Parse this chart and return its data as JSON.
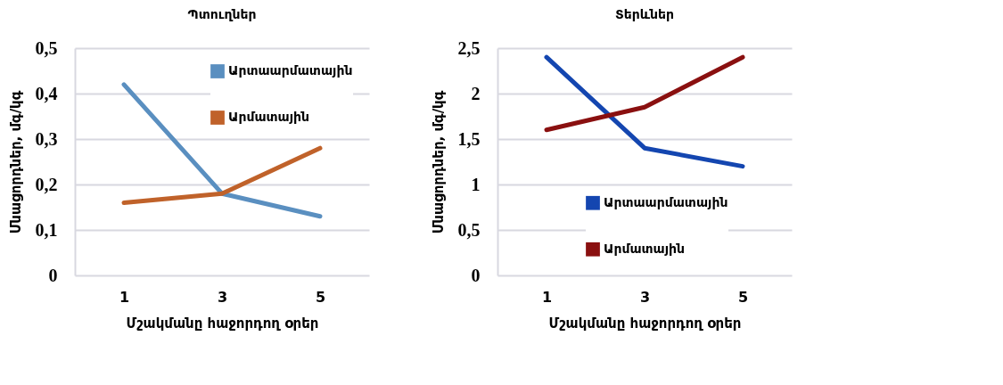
{
  "chart_data": [
    {
      "type": "line",
      "title": "Պտուղներ",
      "xlabel": "Մշակմանը հաջորդող օրեր",
      "ylabel": "Մնացորդներ, մգ/կգ",
      "categories": [
        "1",
        "3",
        "5"
      ],
      "series": [
        {
          "name": "Արտաարմատային",
          "color": "#5a8fc0",
          "values": [
            0.42,
            0.18,
            0.13
          ]
        },
        {
          "name": "Արմատային",
          "color": "#c0622a",
          "values": [
            0.16,
            0.18,
            0.28
          ]
        }
      ],
      "ylim": [
        0,
        0.5
      ],
      "yticks": [
        0,
        {
          "value": 0.1,
          "label": "0,1"
        },
        {
          "value": 0.2,
          "label": "0,2"
        },
        {
          "value": 0.3,
          "label": "0,3"
        },
        {
          "value": 0.4,
          "label": "0,4"
        },
        {
          "value": 0.5,
          "label": "0,5"
        }
      ],
      "grid": "y",
      "legend": "top right",
      "line_style": "solid"
    },
    {
      "type": "line",
      "title": "Տերևներ",
      "xlabel": "Մշակմանը հաջորդող օրեր",
      "ylabel": "Մնացորդներ, մգ/կգ",
      "categories": [
        "1",
        "3",
        "5"
      ],
      "series": [
        {
          "name": "Արտաարմատային",
          "color": "#1446b0",
          "values": [
            2.4,
            1.4,
            1.2
          ]
        },
        {
          "name": "Արմատային",
          "color": "#8a1010",
          "values": [
            1.6,
            1.85,
            2.4
          ]
        }
      ],
      "ylim": [
        0,
        2.5
      ],
      "yticks": [
        0,
        {
          "value": 0.5,
          "label": "0,5"
        },
        1,
        {
          "value": 1.5,
          "label": "1,5"
        },
        2,
        {
          "value": 2.5,
          "label": "2,5"
        }
      ],
      "grid": "y",
      "legend": "bottom",
      "line_style": "solid"
    }
  ]
}
